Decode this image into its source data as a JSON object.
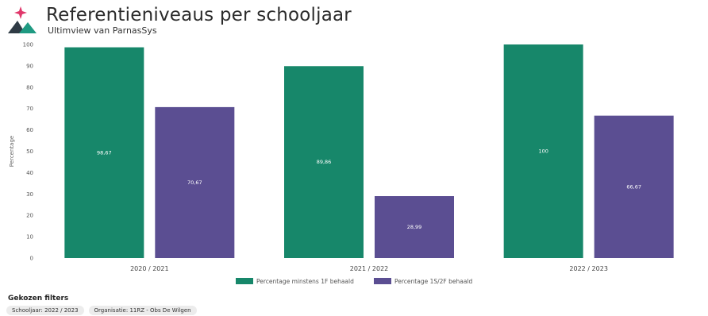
{
  "header": {
    "title": "Referentieniveaus per schooljaar",
    "subtitle": "Ultimview van ParnasSys"
  },
  "colors": {
    "series_green": "#17876a",
    "series_purple": "#5b4e92",
    "logo_pink": "#e0386b",
    "logo_dark": "#2f3b45",
    "logo_teal": "#1f9a82"
  },
  "icons": [
    "brand-logo-icon"
  ],
  "chart_data": {
    "type": "bar",
    "title": "",
    "xlabel": "",
    "ylabel": "Percentage",
    "ylim": [
      0,
      100
    ],
    "yticks": [
      0,
      10,
      20,
      30,
      40,
      50,
      60,
      70,
      80,
      90,
      100
    ],
    "categories": [
      "2020 / 2021",
      "2021 / 2022",
      "2022 / 2023"
    ],
    "series": [
      {
        "name": "Percentage minstens 1F behaald",
        "values": [
          98.67,
          89.86,
          100
        ],
        "labels": [
          "98,67",
          "89,86",
          "100"
        ]
      },
      {
        "name": "Percentage 1S/2F behaald",
        "values": [
          70.67,
          28.99,
          66.67
        ],
        "labels": [
          "70,67",
          "28,99",
          "66,67"
        ]
      }
    ],
    "grid": false,
    "legend": "bottom-center"
  },
  "filters": {
    "title": "Gekozen filters",
    "chips": [
      "Schooljaar: 2022 / 2023",
      "Organisatie: 11RZ - Obs De Wilgen"
    ]
  }
}
